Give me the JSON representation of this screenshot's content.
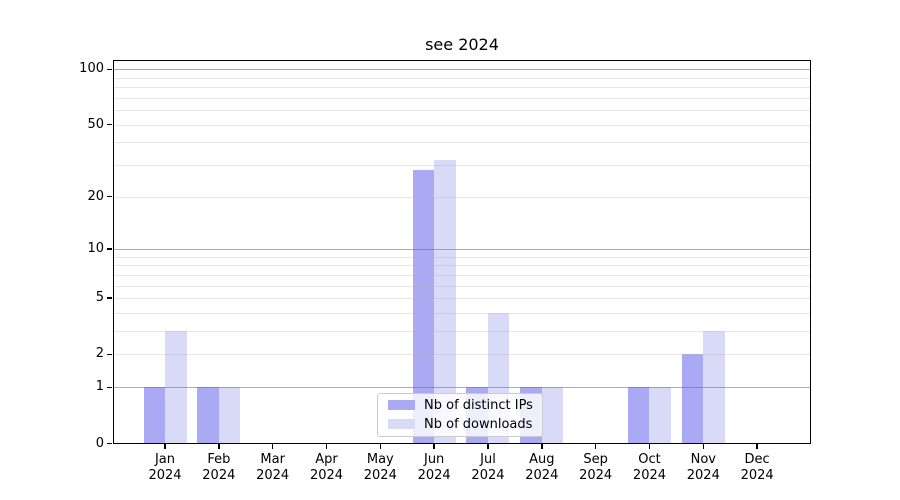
{
  "figure": {
    "title": "see 2024"
  },
  "chart_data": {
    "type": "bar",
    "title": "see 2024",
    "xlabel": "",
    "ylabel": "",
    "yscale": "log1p",
    "ylim": [
      0,
      113
    ],
    "grid": true,
    "legend_position": "lower center",
    "categories": [
      {
        "month": "Jan",
        "year": "2024"
      },
      {
        "month": "Feb",
        "year": "2024"
      },
      {
        "month": "Mar",
        "year": "2024"
      },
      {
        "month": "Apr",
        "year": "2024"
      },
      {
        "month": "May",
        "year": "2024"
      },
      {
        "month": "Jun",
        "year": "2024"
      },
      {
        "month": "Jul",
        "year": "2024"
      },
      {
        "month": "Aug",
        "year": "2024"
      },
      {
        "month": "Sep",
        "year": "2024"
      },
      {
        "month": "Oct",
        "year": "2024"
      },
      {
        "month": "Nov",
        "year": "2024"
      },
      {
        "month": "Dec",
        "year": "2024"
      }
    ],
    "series": [
      {
        "name": "Nb of distinct IPs",
        "color": "#a9a9f4",
        "values": [
          1,
          1,
          0,
          0,
          0,
          28,
          1,
          1,
          0,
          1,
          2,
          0
        ]
      },
      {
        "name": "Nb of downloads",
        "color": "#d9d9f8",
        "values": [
          3,
          1,
          0,
          0,
          0,
          32,
          4,
          1,
          0,
          1,
          3,
          0
        ]
      }
    ],
    "ytick_values": [
      0,
      1,
      2,
      5,
      10,
      20,
      50,
      100
    ],
    "ytick_labels": [
      "0",
      "1",
      "2",
      "5",
      "10",
      "20",
      "50",
      "100"
    ],
    "grid_major_values": [
      1,
      10,
      100
    ],
    "grid_minor_values": [
      2,
      3,
      4,
      5,
      6,
      7,
      8,
      9,
      20,
      30,
      40,
      50,
      60,
      70,
      80,
      90
    ]
  }
}
